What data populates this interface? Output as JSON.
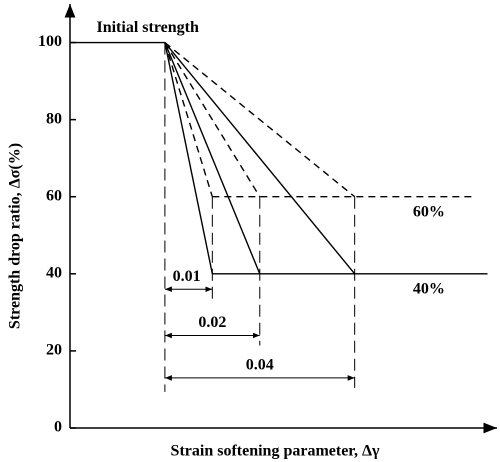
{
  "chart_data": {
    "type": "line",
    "xlabel": "Strain softening parameter, Δγ",
    "ylabel": "Strength drop ratio, Δσ(%)",
    "xlim": [
      0,
      0.09
    ],
    "ylim": [
      0,
      110
    ],
    "yticks": [
      0,
      20,
      40,
      60,
      80,
      100
    ],
    "series": [
      {
        "color": "#000000",
        "dash": false,
        "x": [
          0,
          0.02
        ],
        "values": [
          100,
          100
        ]
      },
      {
        "color": "#000000",
        "dash": false,
        "x": [
          0.02,
          0.03
        ],
        "values": [
          100,
          40
        ]
      },
      {
        "color": "#000000",
        "dash": false,
        "x": [
          0.02,
          0.04
        ],
        "values": [
          100,
          40
        ]
      },
      {
        "color": "#000000",
        "dash": false,
        "x": [
          0.02,
          0.06
        ],
        "values": [
          100,
          40
        ]
      },
      {
        "color": "#000000",
        "dash": false,
        "x": [
          0.03,
          0.088
        ],
        "values": [
          40,
          40
        ]
      },
      {
        "color": "#000000",
        "dash": true,
        "x": [
          0.02,
          0.03
        ],
        "values": [
          100,
          60
        ]
      },
      {
        "color": "#000000",
        "dash": true,
        "x": [
          0.02,
          0.04
        ],
        "values": [
          100,
          60
        ]
      },
      {
        "color": "#000000",
        "dash": true,
        "x": [
          0.02,
          0.06
        ],
        "values": [
          100,
          60
        ]
      },
      {
        "color": "#000000",
        "dash": true,
        "x": [
          0.03,
          0.085
        ],
        "values": [
          60,
          60
        ]
      }
    ],
    "annotations": [
      {
        "text": "Initial strength",
        "x": 0.02,
        "y": 100
      },
      {
        "text": "60%",
        "x": 0.075,
        "y": 60
      },
      {
        "text": "40%",
        "x": 0.075,
        "y": 40
      }
    ],
    "dimensions": [
      {
        "label": "0.01",
        "x": [
          0.02,
          0.03
        ],
        "y": 36
      },
      {
        "label": "0.02",
        "x": [
          0.02,
          0.04
        ],
        "y": 24
      },
      {
        "label": "0.04",
        "x": [
          0.02,
          0.06
        ],
        "y": 13
      }
    ]
  }
}
